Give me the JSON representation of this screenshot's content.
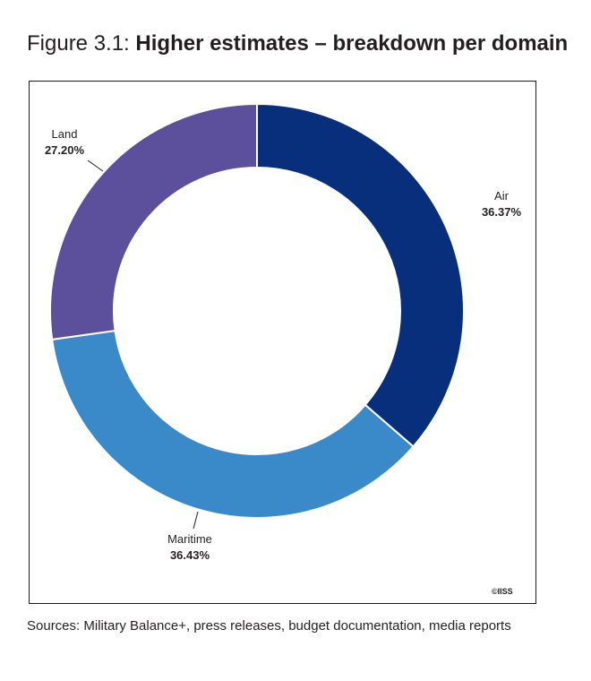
{
  "figure": {
    "number_label": "Figure 3.1: ",
    "title": "Higher estimates – breakdown per domain",
    "copyright": "©IISS",
    "source": "Sources: Military Balance+, press releases, budget documentation, media reports"
  },
  "chart_data": {
    "type": "pie",
    "donut": true,
    "start_angle_deg": 0,
    "direction": "clockwise",
    "slices": [
      {
        "name": "Air",
        "value": 36.37,
        "label": "36.37%",
        "color": "#072f7b"
      },
      {
        "name": "Maritime",
        "value": 36.43,
        "label": "36.43%",
        "color": "#3a89c9"
      },
      {
        "name": "Land",
        "value": 27.2,
        "label": "27.20%",
        "color": "#5c4f9c"
      }
    ],
    "legend": "none",
    "grid": false
  }
}
